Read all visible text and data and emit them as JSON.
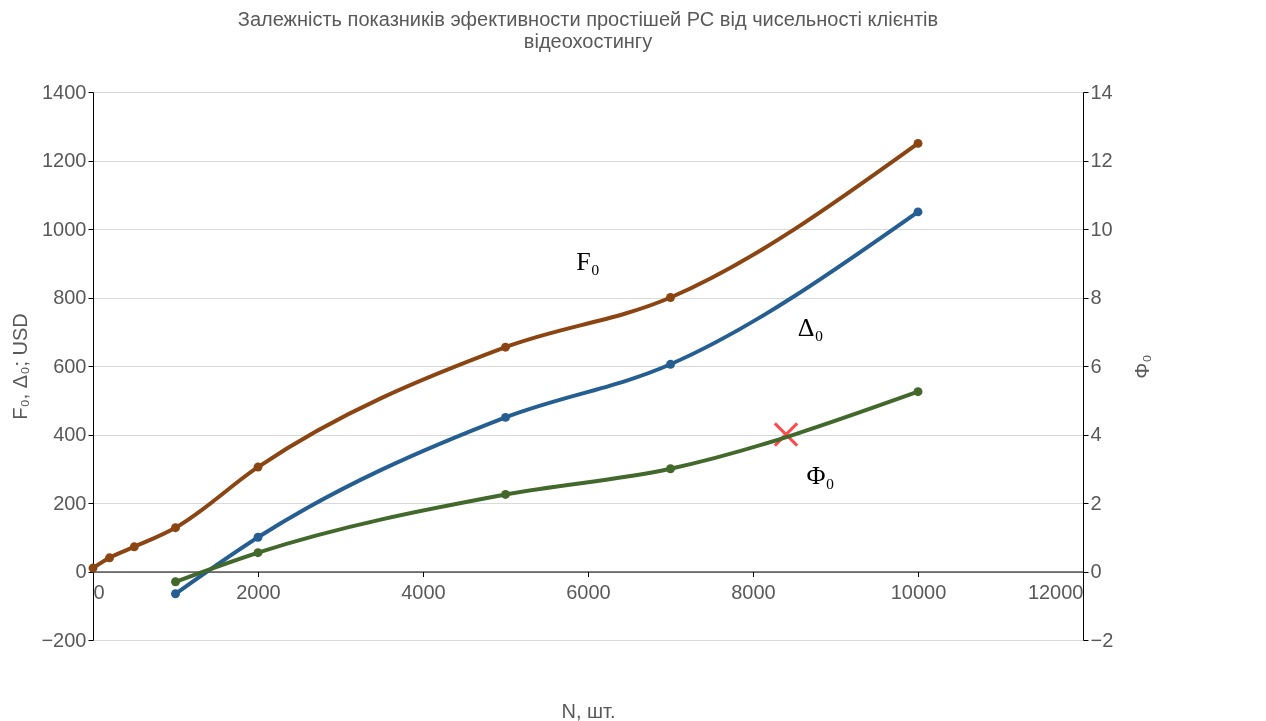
{
  "chart_data": {
    "type": "line",
    "title": "Залежність показників эфективности простішей РС від чисельності клієнтів відеохостингу",
    "xlabel": "N, шт.",
    "ylabel": "F₀, Δ₀; USD",
    "y2label": "Φ₀",
    "xlim": [
      0,
      12000
    ],
    "xticks": [
      0,
      2000,
      4000,
      6000,
      8000,
      10000,
      12000
    ],
    "ylim": [
      -200,
      1400
    ],
    "yticks": [
      -200,
      0,
      200,
      400,
      600,
      800,
      1000,
      1200,
      1400
    ],
    "y2lim": [
      -2,
      14
    ],
    "y2ticks": [
      -2,
      0,
      2,
      4,
      6,
      8,
      10,
      12,
      14
    ],
    "grid": "y",
    "marker": "circle",
    "line_style": "solid",
    "series": [
      {
        "color": "#8b4513",
        "x": [
          0,
          200,
          500,
          1000,
          2000,
          5000,
          7000,
          10000
        ],
        "values": [
          10,
          40,
          72,
          128,
          305,
          655,
          800,
          1250
        ]
      },
      {
        "color": "#255e91",
        "x": [
          1000,
          2000,
          5000,
          7000,
          10000
        ],
        "values": [
          -65,
          100,
          450,
          605,
          1050
        ]
      },
      {
        "color": "#43682b",
        "axis": "y2",
        "x": [
          1000,
          2000,
          5000,
          7000,
          10000
        ],
        "values": [
          -0.3,
          0.55,
          2.25,
          3.0,
          5.25
        ]
      },
      {
        "type": "scatter",
        "marker": "cross",
        "color": "#ff0000",
        "x": [
          8400
        ],
        "values": [
          400
        ]
      }
    ],
    "annotations": [
      "F₀",
      "Δ₀",
      "Φ₀"
    ]
  }
}
